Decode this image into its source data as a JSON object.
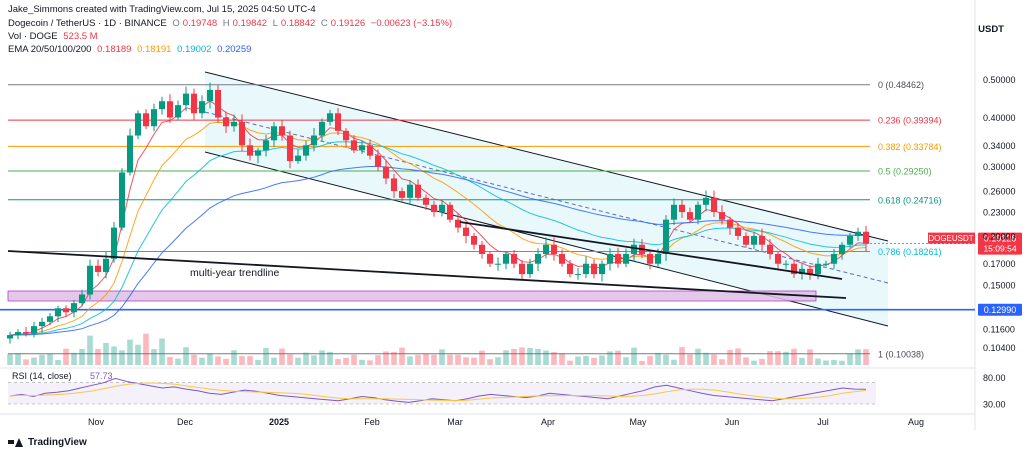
{
  "header": {
    "creator_line": "Jake_Simmons created with TradingView.com, Jul 15, 2025 04:50 UTC-4",
    "symbol_line": "Dogecoin / TetherUS · 1D · BINANCE",
    "ohlc": {
      "o_label": "O",
      "o": "0.19748",
      "h_label": "H",
      "h": "0.19842",
      "l_label": "L",
      "l": "0.18842",
      "c_label": "C",
      "c": "0.19126",
      "change": "−0.00623 (−3.15%)"
    },
    "vol_label": "Vol · DOGE",
    "vol_value": "523.5 M",
    "ema_label": "EMA 20/50/100/200",
    "ema_values": [
      "0.18189",
      "0.18191",
      "0.19002",
      "0.20259"
    ]
  },
  "axis_title": "USDT",
  "footer_brand": "TradingView",
  "colors": {
    "up": "#089981",
    "down": "#f23645",
    "ema20": "#f23645",
    "ema50": "#ff9800",
    "ema100": "#00bcd4",
    "ema200": "#2962ff",
    "fib0": "#787b86",
    "fib236": "#f23645",
    "fib382": "#ff9800",
    "fib50": "#4caf50",
    "fib618": "#089981",
    "fib786": "#00bcd4",
    "fib1": "#787b86",
    "support": "#2962ff",
    "zone": "#e1bee7",
    "channel": "#e0f7fa",
    "rsi": "#7e57c2",
    "rsi_ma": "#f7c948"
  },
  "chart_data": {
    "type": "candlestick",
    "symbol": "DOGEUSDT",
    "last_price": "0.19126",
    "countdown": "15:09:54",
    "y_scale": "log",
    "ylim": [
      0.094,
      0.56
    ],
    "y_ticks": [
      "0.50000",
      "0.40000",
      "0.34000",
      "0.30000",
      "0.26000",
      "0.23000",
      "0.20000",
      "0.17000",
      "0.15000",
      "0.11600",
      "0.10400"
    ],
    "x_ticks": [
      "Nov",
      "Dec",
      "2025",
      "Feb",
      "Mar",
      "Apr",
      "May",
      "Jun",
      "Jul",
      "Aug"
    ],
    "fib_levels": [
      {
        "label": "0 (0.48462)",
        "value": 0.48462
      },
      {
        "label": "0.236 (0.39394)",
        "value": 0.39394
      },
      {
        "label": "0.382 (0.33784)",
        "value": 0.33784
      },
      {
        "label": "0.5 (0.29250)",
        "value": 0.2925
      },
      {
        "label": "0.618 (0.24716)",
        "value": 0.24716
      },
      {
        "label": "0.786 (0.18261)",
        "value": 0.18261
      },
      {
        "label": "1 (0.10038)",
        "value": 0.10038
      }
    ],
    "support_level": {
      "label": "0.12990",
      "value": 0.1299
    },
    "annotation": "multi-year trendline",
    "closes_approx": [
      0.112,
      0.114,
      0.113,
      0.118,
      0.121,
      0.125,
      0.131,
      0.128,
      0.135,
      0.142,
      0.168,
      0.162,
      0.175,
      0.21,
      0.29,
      0.36,
      0.41,
      0.38,
      0.42,
      0.44,
      0.4,
      0.43,
      0.46,
      0.41,
      0.44,
      0.47,
      0.4,
      0.38,
      0.39,
      0.34,
      0.32,
      0.33,
      0.35,
      0.38,
      0.36,
      0.31,
      0.32,
      0.34,
      0.36,
      0.39,
      0.41,
      0.37,
      0.35,
      0.33,
      0.34,
      0.32,
      0.3,
      0.28,
      0.26,
      0.25,
      0.27,
      0.25,
      0.24,
      0.23,
      0.24,
      0.22,
      0.21,
      0.2,
      0.19,
      0.18,
      0.17,
      0.17,
      0.18,
      0.17,
      0.16,
      0.17,
      0.18,
      0.19,
      0.18,
      0.17,
      0.16,
      0.16,
      0.17,
      0.16,
      0.17,
      0.18,
      0.17,
      0.18,
      0.19,
      0.18,
      0.17,
      0.18,
      0.22,
      0.24,
      0.23,
      0.22,
      0.24,
      0.25,
      0.23,
      0.22,
      0.21,
      0.2,
      0.19,
      0.2,
      0.19,
      0.18,
      0.17,
      0.17,
      0.16,
      0.165,
      0.16,
      0.17,
      0.17,
      0.18,
      0.19,
      0.2,
      0.205,
      0.191
    ],
    "rsi": {
      "label": "RSI (14, close)",
      "value": "57.73",
      "ylim": [
        15,
        90
      ],
      "y_ticks": [
        "80.00",
        "30.00"
      ],
      "values_approx": [
        45,
        48,
        44,
        50,
        52,
        55,
        60,
        65,
        70,
        78,
        72,
        68,
        64,
        60,
        62,
        58,
        55,
        50,
        48,
        52,
        56,
        54,
        50,
        46,
        44,
        42,
        40,
        38,
        36,
        40,
        44,
        42,
        38,
        35,
        33,
        36,
        40,
        38,
        36,
        40,
        45,
        48,
        46,
        44,
        42,
        45,
        50,
        48,
        46,
        44,
        42,
        40,
        45,
        50,
        55,
        62,
        65,
        60,
        55,
        50,
        46,
        44,
        42,
        40,
        38,
        36,
        40,
        44,
        48,
        52,
        56,
        60,
        58,
        57.73
      ]
    }
  }
}
